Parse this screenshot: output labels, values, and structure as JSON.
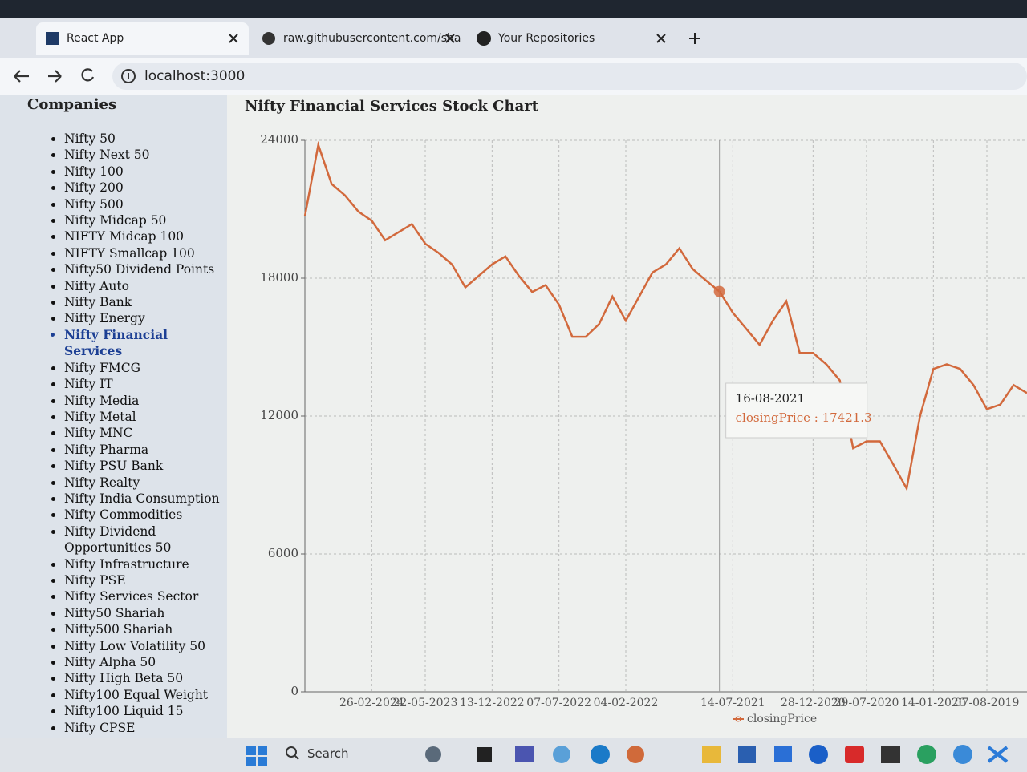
{
  "browser": {
    "tabs": [
      "React App",
      "raw.githubusercontent.com/sha",
      "Your Repositories"
    ],
    "address": "localhost:3000"
  },
  "sidebar": {
    "title": "Companies",
    "items": [
      "Nifty 50",
      "Nifty Next 50",
      "Nifty 100",
      "Nifty 200",
      "Nifty 500",
      "Nifty Midcap 50",
      "NIFTY Midcap 100",
      "NIFTY Smallcap 100",
      "Nifty50 Dividend Points",
      "Nifty Auto",
      "Nifty Bank",
      "Nifty Energy",
      "Nifty Financial Services",
      "Nifty FMCG",
      "Nifty IT",
      "Nifty Media",
      "Nifty Metal",
      "Nifty MNC",
      "Nifty Pharma",
      "Nifty PSU Bank",
      "Nifty Realty",
      "Nifty India Consumption",
      "Nifty Commodities",
      "Nifty Dividend Opportunities 50",
      "Nifty Infrastructure",
      "Nifty PSE",
      "Nifty Services Sector",
      "Nifty50 Shariah",
      "Nifty500 Shariah",
      "Nifty Low Volatility 50",
      "Nifty Alpha 50",
      "Nifty High Beta 50",
      "Nifty100 Equal Weight",
      "Nifty100 Liquid 15",
      "Nifty CPSE"
    ],
    "active": 12
  },
  "taskbar": {
    "search": "Search"
  },
  "chart_data": {
    "type": "line",
    "title": "Nifty Financial Services Stock Chart",
    "categories": [
      null,
      null,
      null,
      null,
      null,
      "26-02-2024",
      null,
      null,
      null,
      "22-05-2023",
      null,
      null,
      null,
      null,
      "13-12-2022",
      null,
      null,
      null,
      null,
      "07-07-2022",
      null,
      null,
      null,
      null,
      "04-02-2022",
      null,
      null,
      null,
      null,
      null,
      null,
      null,
      "14-07-2021",
      null,
      null,
      null,
      null,
      null,
      "28-12-2020",
      null,
      null,
      null,
      "29-07-2020",
      null,
      null,
      null,
      null,
      "14-01-2020",
      null,
      null,
      null,
      "07-08-2019",
      null,
      null,
      null
    ],
    "series": [
      {
        "name": "closingPrice",
        "color": "#d2693c",
        "values": [
          20700,
          23800,
          22100,
          21600,
          20900,
          20500,
          19650,
          20000,
          20350,
          19500,
          19100,
          18600,
          17600,
          18100,
          18600,
          18950,
          18100,
          17400,
          17700,
          16850,
          15450,
          15450,
          16000,
          17200,
          16150,
          17200,
          18250,
          18600,
          19300,
          18400,
          17900,
          17421.3,
          16500,
          15800,
          15100,
          16150,
          17000,
          14750,
          14750,
          14250,
          13550,
          10600,
          10900,
          10900,
          9900,
          8850,
          12000,
          14050,
          14250,
          14050,
          13350,
          12300,
          12500,
          13350,
          13000
        ]
      }
    ],
    "ylim": [
      0,
      24000
    ],
    "yticks": [
      0,
      6000,
      12000,
      18000,
      24000
    ],
    "grid": true,
    "tooltip": {
      "index": 31,
      "date": "16-08-2021",
      "text": "closingPrice : 17421.3"
    }
  }
}
